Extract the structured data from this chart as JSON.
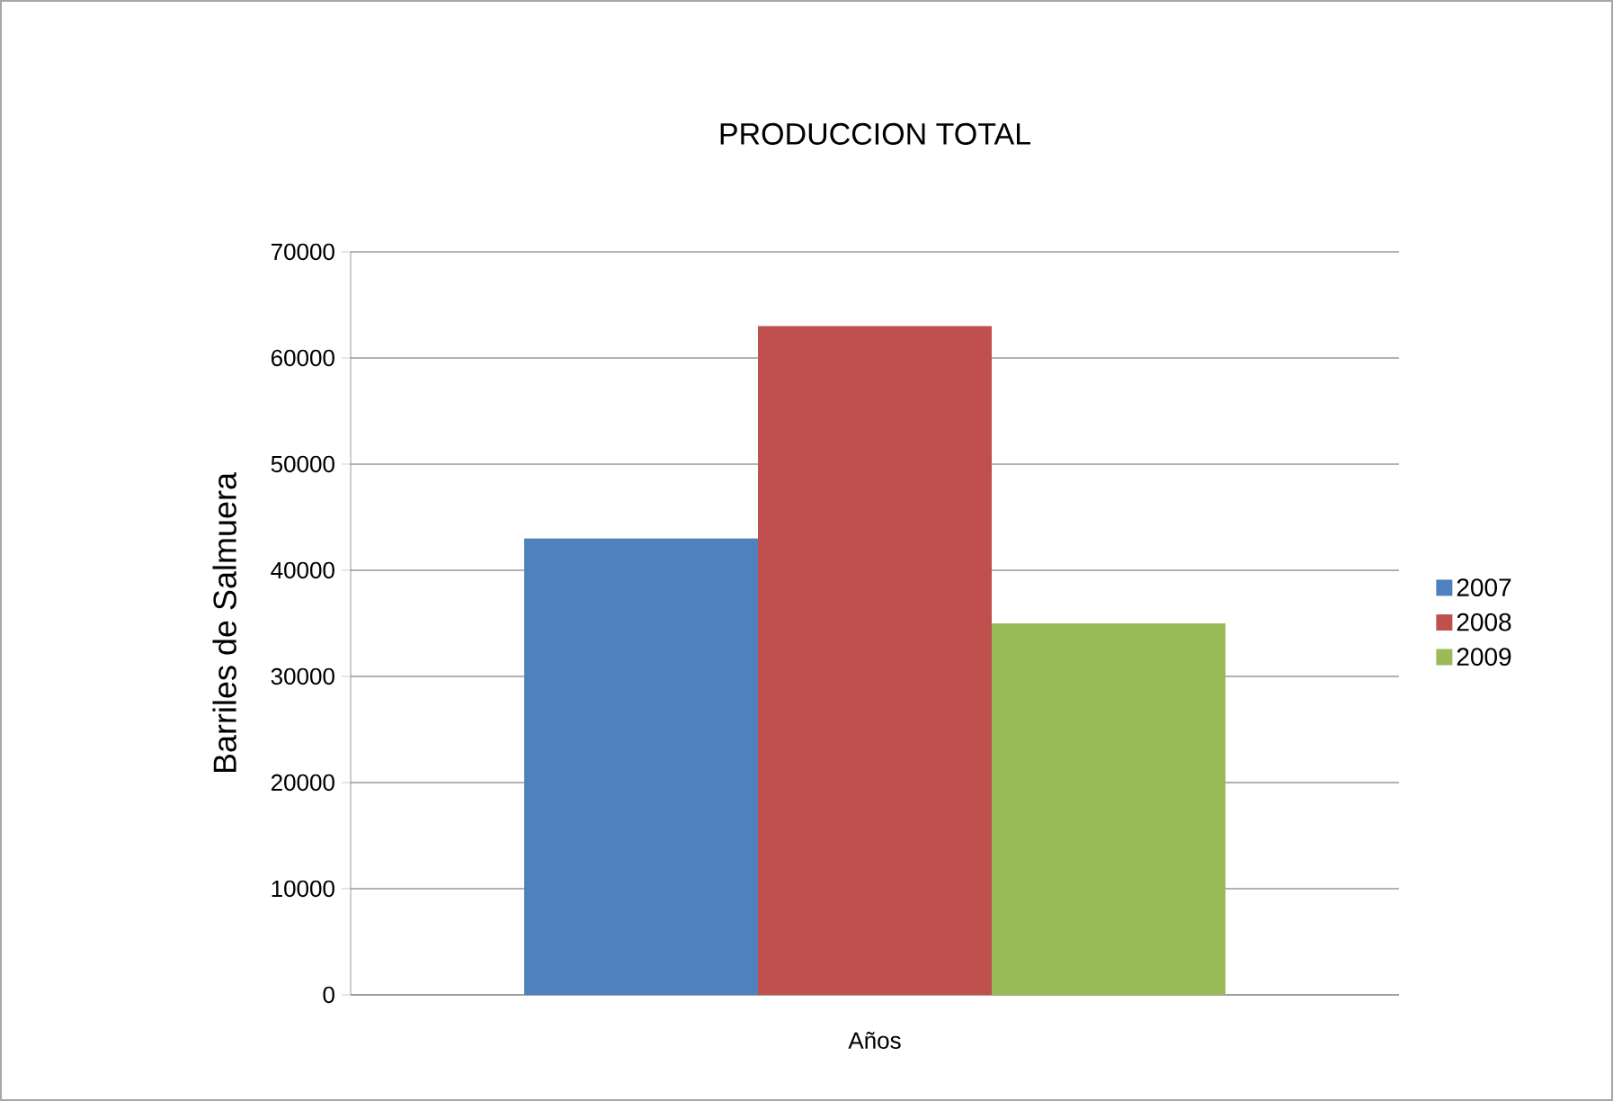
{
  "chart_data": {
    "type": "bar",
    "title": "PRODUCCION TOTAL",
    "ylabel": "Barriles de  Salmuera",
    "categories": [
      "Años"
    ],
    "series": [
      {
        "name": "2007",
        "color": "#4f81bd",
        "values": [
          43000
        ]
      },
      {
        "name": "2008",
        "color": "#c0504d",
        "values": [
          63000
        ]
      },
      {
        "name": "2009",
        "color": "#9bbb59",
        "values": [
          35000
        ]
      }
    ],
    "ylim": [
      0,
      70000
    ],
    "yticks": [
      0,
      10000,
      20000,
      30000,
      40000,
      50000,
      60000,
      70000
    ],
    "grid": "y",
    "legend": "right"
  }
}
